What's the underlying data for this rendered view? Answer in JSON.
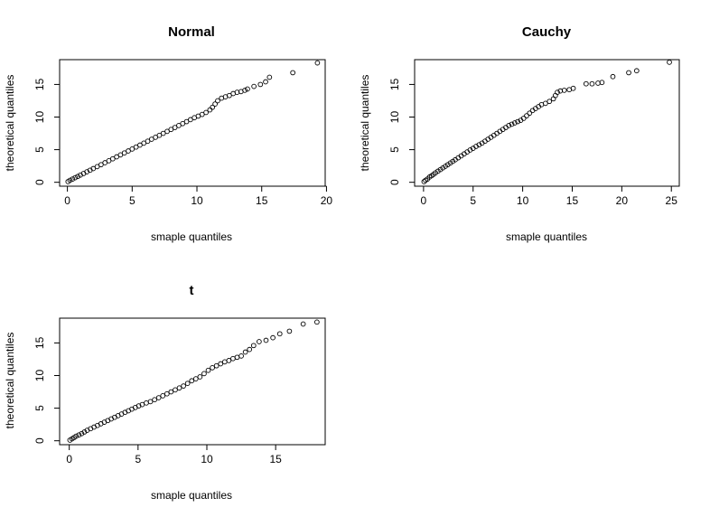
{
  "chart_data": [
    {
      "type": "scatter",
      "title": "Normal",
      "xlabel": "smaple quantiles",
      "ylabel": "theoretical quantiles",
      "xlim": [
        -0.6,
        19.9
      ],
      "ylim": [
        -0.6,
        18.8
      ],
      "xticks": [
        0,
        5,
        10,
        15,
        20
      ],
      "yticks": [
        0,
        5,
        10,
        15
      ],
      "grid": false,
      "legend": "none",
      "marker": "open-circle",
      "series": [
        {
          "points": [
            [
              0.05,
              0.1
            ],
            [
              0.2,
              0.3
            ],
            [
              0.4,
              0.5
            ],
            [
              0.6,
              0.7
            ],
            [
              0.8,
              0.9
            ],
            [
              1.0,
              1.1
            ],
            [
              1.25,
              1.35
            ],
            [
              1.5,
              1.6
            ],
            [
              1.75,
              1.85
            ],
            [
              2.0,
              2.1
            ],
            [
              2.3,
              2.4
            ],
            [
              2.6,
              2.7
            ],
            [
              2.9,
              3.0
            ],
            [
              3.2,
              3.3
            ],
            [
              3.5,
              3.6
            ],
            [
              3.8,
              3.9
            ],
            [
              4.1,
              4.2
            ],
            [
              4.4,
              4.5
            ],
            [
              4.7,
              4.8
            ],
            [
              5.0,
              5.1
            ],
            [
              5.3,
              5.4
            ],
            [
              5.6,
              5.7
            ],
            [
              5.9,
              6.0
            ],
            [
              6.2,
              6.3
            ],
            [
              6.5,
              6.6
            ],
            [
              6.8,
              6.9
            ],
            [
              7.1,
              7.2
            ],
            [
              7.4,
              7.5
            ],
            [
              7.7,
              7.8
            ],
            [
              8.0,
              8.1
            ],
            [
              8.3,
              8.4
            ],
            [
              8.6,
              8.7
            ],
            [
              8.9,
              9.0
            ],
            [
              9.2,
              9.3
            ],
            [
              9.5,
              9.6
            ],
            [
              9.8,
              9.9
            ],
            [
              10.1,
              10.15
            ],
            [
              10.4,
              10.4
            ],
            [
              10.7,
              10.7
            ],
            [
              11.0,
              11.1
            ],
            [
              11.2,
              11.5
            ],
            [
              11.4,
              12.0
            ],
            [
              11.6,
              12.5
            ],
            [
              11.9,
              12.9
            ],
            [
              12.2,
              13.1
            ],
            [
              12.5,
              13.3
            ],
            [
              12.8,
              13.6
            ],
            [
              13.1,
              13.8
            ],
            [
              13.4,
              13.9
            ],
            [
              13.7,
              14.1
            ],
            [
              13.9,
              14.3
            ],
            [
              14.4,
              14.7
            ],
            [
              14.9,
              15.0
            ],
            [
              15.3,
              15.4
            ],
            [
              15.6,
              16.1
            ],
            [
              17.4,
              16.8
            ],
            [
              19.3,
              18.3
            ]
          ]
        }
      ]
    },
    {
      "type": "scatter",
      "title": "Cauchy",
      "xlabel": "smaple quantiles",
      "ylabel": "theoretical quantiles",
      "xlim": [
        -0.9,
        25.8
      ],
      "ylim": [
        -0.6,
        18.8
      ],
      "xticks": [
        0,
        5,
        10,
        15,
        20,
        25
      ],
      "yticks": [
        0,
        5,
        10,
        15
      ],
      "grid": false,
      "legend": "none",
      "marker": "open-circle",
      "series": [
        {
          "points": [
            [
              0.05,
              0.1
            ],
            [
              0.2,
              0.3
            ],
            [
              0.4,
              0.5
            ],
            [
              0.6,
              0.8
            ],
            [
              0.8,
              1.0
            ],
            [
              1.0,
              1.2
            ],
            [
              1.2,
              1.45
            ],
            [
              1.45,
              1.7
            ],
            [
              1.7,
              1.95
            ],
            [
              1.95,
              2.2
            ],
            [
              2.2,
              2.45
            ],
            [
              2.45,
              2.7
            ],
            [
              2.7,
              2.95
            ],
            [
              2.95,
              3.2
            ],
            [
              3.2,
              3.45
            ],
            [
              3.5,
              3.75
            ],
            [
              3.8,
              4.05
            ],
            [
              4.1,
              4.35
            ],
            [
              4.4,
              4.65
            ],
            [
              4.7,
              4.95
            ],
            [
              5.0,
              5.2
            ],
            [
              5.3,
              5.5
            ],
            [
              5.6,
              5.75
            ],
            [
              5.9,
              6.0
            ],
            [
              6.2,
              6.3
            ],
            [
              6.5,
              6.6
            ],
            [
              6.8,
              6.9
            ],
            [
              7.1,
              7.2
            ],
            [
              7.4,
              7.5
            ],
            [
              7.7,
              7.8
            ],
            [
              8.0,
              8.1
            ],
            [
              8.3,
              8.4
            ],
            [
              8.6,
              8.7
            ],
            [
              8.9,
              8.9
            ],
            [
              9.2,
              9.1
            ],
            [
              9.5,
              9.3
            ],
            [
              9.8,
              9.5
            ],
            [
              10.1,
              9.8
            ],
            [
              10.4,
              10.2
            ],
            [
              10.7,
              10.6
            ],
            [
              11.0,
              11.0
            ],
            [
              11.3,
              11.3
            ],
            [
              11.6,
              11.6
            ],
            [
              11.9,
              11.9
            ],
            [
              12.3,
              12.1
            ],
            [
              12.7,
              12.4
            ],
            [
              13.1,
              12.8
            ],
            [
              13.3,
              13.3
            ],
            [
              13.5,
              13.8
            ],
            [
              13.8,
              14.0
            ],
            [
              14.2,
              14.1
            ],
            [
              14.7,
              14.2
            ],
            [
              15.1,
              14.4
            ],
            [
              16.4,
              15.1
            ],
            [
              17.0,
              15.1
            ],
            [
              17.6,
              15.2
            ],
            [
              18.0,
              15.3
            ],
            [
              19.1,
              16.2
            ],
            [
              20.7,
              16.8
            ],
            [
              21.5,
              17.1
            ],
            [
              24.8,
              18.4
            ]
          ]
        }
      ]
    },
    {
      "type": "scatter",
      "title": "t",
      "xlabel": "smaple quantiles",
      "ylabel": "theoretical quantiles",
      "xlim": [
        -0.7,
        18.6
      ],
      "ylim": [
        -0.6,
        18.8
      ],
      "xticks": [
        0,
        5,
        10,
        15
      ],
      "yticks": [
        0,
        5,
        10,
        15
      ],
      "grid": false,
      "legend": "none",
      "marker": "open-circle",
      "series": [
        {
          "points": [
            [
              0.05,
              0.1
            ],
            [
              0.2,
              0.3
            ],
            [
              0.35,
              0.5
            ],
            [
              0.5,
              0.7
            ],
            [
              0.7,
              0.9
            ],
            [
              0.9,
              1.1
            ],
            [
              1.1,
              1.35
            ],
            [
              1.3,
              1.6
            ],
            [
              1.55,
              1.85
            ],
            [
              1.8,
              2.1
            ],
            [
              2.05,
              2.35
            ],
            [
              2.3,
              2.6
            ],
            [
              2.55,
              2.85
            ],
            [
              2.8,
              3.1
            ],
            [
              3.05,
              3.35
            ],
            [
              3.3,
              3.6
            ],
            [
              3.55,
              3.85
            ],
            [
              3.8,
              4.1
            ],
            [
              4.05,
              4.35
            ],
            [
              4.3,
              4.6
            ],
            [
              4.55,
              4.85
            ],
            [
              4.8,
              5.1
            ],
            [
              5.05,
              5.35
            ],
            [
              5.3,
              5.55
            ],
            [
              5.6,
              5.8
            ],
            [
              5.9,
              6.0
            ],
            [
              6.2,
              6.3
            ],
            [
              6.5,
              6.6
            ],
            [
              6.8,
              6.9
            ],
            [
              7.1,
              7.2
            ],
            [
              7.4,
              7.5
            ],
            [
              7.7,
              7.8
            ],
            [
              8.0,
              8.1
            ],
            [
              8.3,
              8.4
            ],
            [
              8.6,
              8.8
            ],
            [
              8.9,
              9.2
            ],
            [
              9.2,
              9.5
            ],
            [
              9.5,
              9.8
            ],
            [
              9.8,
              10.3
            ],
            [
              10.1,
              10.8
            ],
            [
              10.4,
              11.2
            ],
            [
              10.7,
              11.5
            ],
            [
              11.0,
              11.8
            ],
            [
              11.3,
              12.1
            ],
            [
              11.6,
              12.3
            ],
            [
              11.9,
              12.6
            ],
            [
              12.2,
              12.8
            ],
            [
              12.5,
              13.0
            ],
            [
              12.8,
              13.6
            ],
            [
              13.1,
              14.0
            ],
            [
              13.4,
              14.6
            ],
            [
              13.8,
              15.2
            ],
            [
              14.3,
              15.4
            ],
            [
              14.8,
              15.8
            ],
            [
              15.3,
              16.4
            ],
            [
              16.0,
              16.8
            ],
            [
              17.0,
              17.9
            ],
            [
              18.0,
              18.2
            ]
          ]
        }
      ]
    }
  ]
}
